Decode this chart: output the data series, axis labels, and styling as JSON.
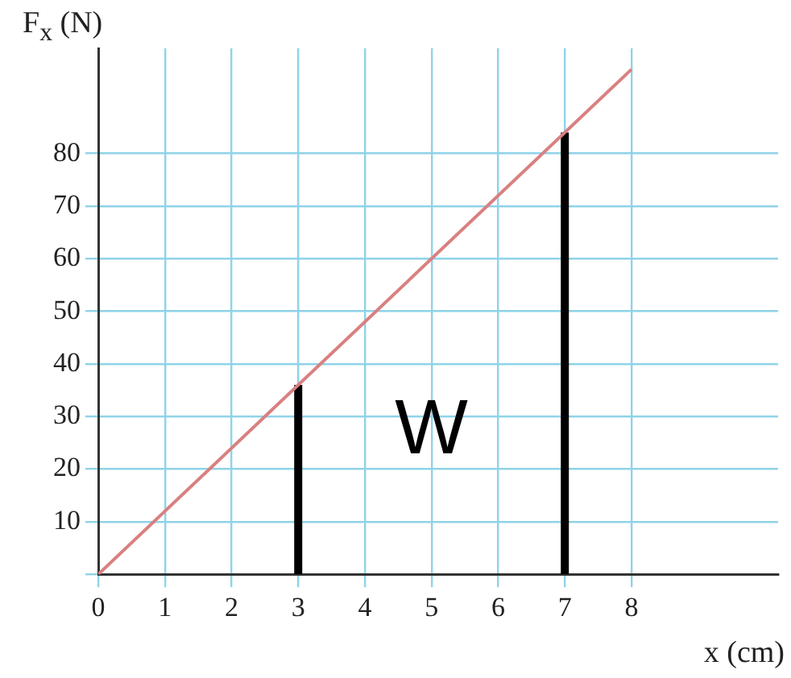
{
  "chart_data": {
    "type": "line",
    "xlabel": "x (cm)",
    "ylabel": "F$_{x}$ (N)",
    "xlim": [
      0,
      10.2
    ],
    "ylim": [
      0,
      100
    ],
    "xticks": [
      0,
      1,
      2,
      3,
      4,
      5,
      6,
      7,
      8
    ],
    "yticks": [
      {
        "value": 0,
        "label": null
      },
      10,
      20,
      30,
      40,
      50,
      60,
      70,
      80
    ],
    "grid": true,
    "series": [
      {
        "color": "#d98080",
        "x": [
          0,
          8
        ],
        "values": [
          0,
          96
        ]
      },
      {
        "color": "#000000",
        "x": [
          3,
          3
        ],
        "values": [
          0,
          36
        ]
      },
      {
        "color": "#000000",
        "x": [
          7,
          7
        ],
        "values": [
          0,
          84
        ]
      }
    ],
    "annotations": [
      "W"
    ]
  }
}
